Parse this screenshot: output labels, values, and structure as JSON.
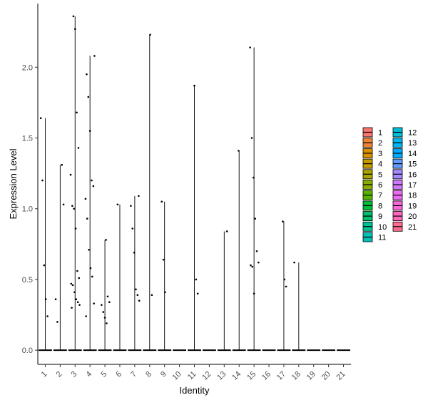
{
  "chart_data": {
    "type": "violin",
    "xlabel": "Identity",
    "ylabel": "Expression Level",
    "ylim": [
      -0.1,
      2.45
    ],
    "yticks": [
      0.0,
      0.5,
      1.0,
      1.5,
      2.0
    ],
    "ytick_labels": [
      "0.0",
      "0.5",
      "1.0",
      "1.5",
      "2.0"
    ],
    "grid": false,
    "legend_position": "right",
    "categories": [
      "1",
      "2",
      "3",
      "4",
      "5",
      "6",
      "7",
      "8",
      "9",
      "10",
      "11",
      "12",
      "13",
      "14",
      "15",
      "16",
      "17",
      "18",
      "19",
      "20",
      "21"
    ],
    "colors": [
      "#F8766D",
      "#EB8335",
      "#DA8F00",
      "#C49A00",
      "#A9A400",
      "#86AC00",
      "#53B400",
      "#00BA38",
      "#00BE6C",
      "#00C094",
      "#00C0B8",
      "#00BDD8",
      "#00B6F0",
      "#00ABFD",
      "#619CFF",
      "#A58AFF",
      "#CF78FF",
      "#EA6AF1",
      "#F966DA",
      "#FF65BA",
      "#FF6C92"
    ],
    "violin_max": [
      1.64,
      1.31,
      2.36,
      2.08,
      0.78,
      1.03,
      1.09,
      2.23,
      1.05,
      0.0,
      1.87,
      0.0,
      0.84,
      1.41,
      2.14,
      0.0,
      0.91,
      0.62,
      0.0,
      0.0,
      0.0
    ],
    "points": [
      [
        1.64,
        1.2,
        0.6,
        0.36,
        0.24
      ],
      [
        1.31,
        1.03,
        0.36,
        0.2
      ],
      [
        2.36,
        2.27,
        1.68,
        1.43,
        1.24,
        1.02,
        1.0,
        0.86,
        0.56,
        0.51,
        0.47,
        0.46,
        0.41,
        0.36,
        0.34,
        0.32,
        0.3
      ],
      [
        2.08,
        1.95,
        1.79,
        1.55,
        1.2,
        1.16,
        1.07,
        0.93,
        0.71,
        0.58,
        0.52,
        0.33,
        0.24
      ],
      [
        0.78,
        0.38,
        0.34,
        0.32,
        0.27,
        0.23,
        0.19
      ],
      [
        1.03
      ],
      [
        1.09,
        1.02,
        0.86,
        0.69,
        0.43,
        0.39,
        0.35
      ],
      [
        2.23,
        0.39
      ],
      [
        1.05,
        0.64,
        0.41
      ],
      [],
      [
        1.87,
        0.5,
        0.4
      ],
      [],
      [
        0.84
      ],
      [
        1.41
      ],
      [
        2.14,
        1.5,
        1.22,
        0.93,
        0.7,
        0.62,
        0.6,
        0.59,
        0.4
      ],
      [],
      [
        0.91,
        0.5,
        0.45
      ],
      [
        0.62
      ],
      [],
      [],
      []
    ]
  }
}
